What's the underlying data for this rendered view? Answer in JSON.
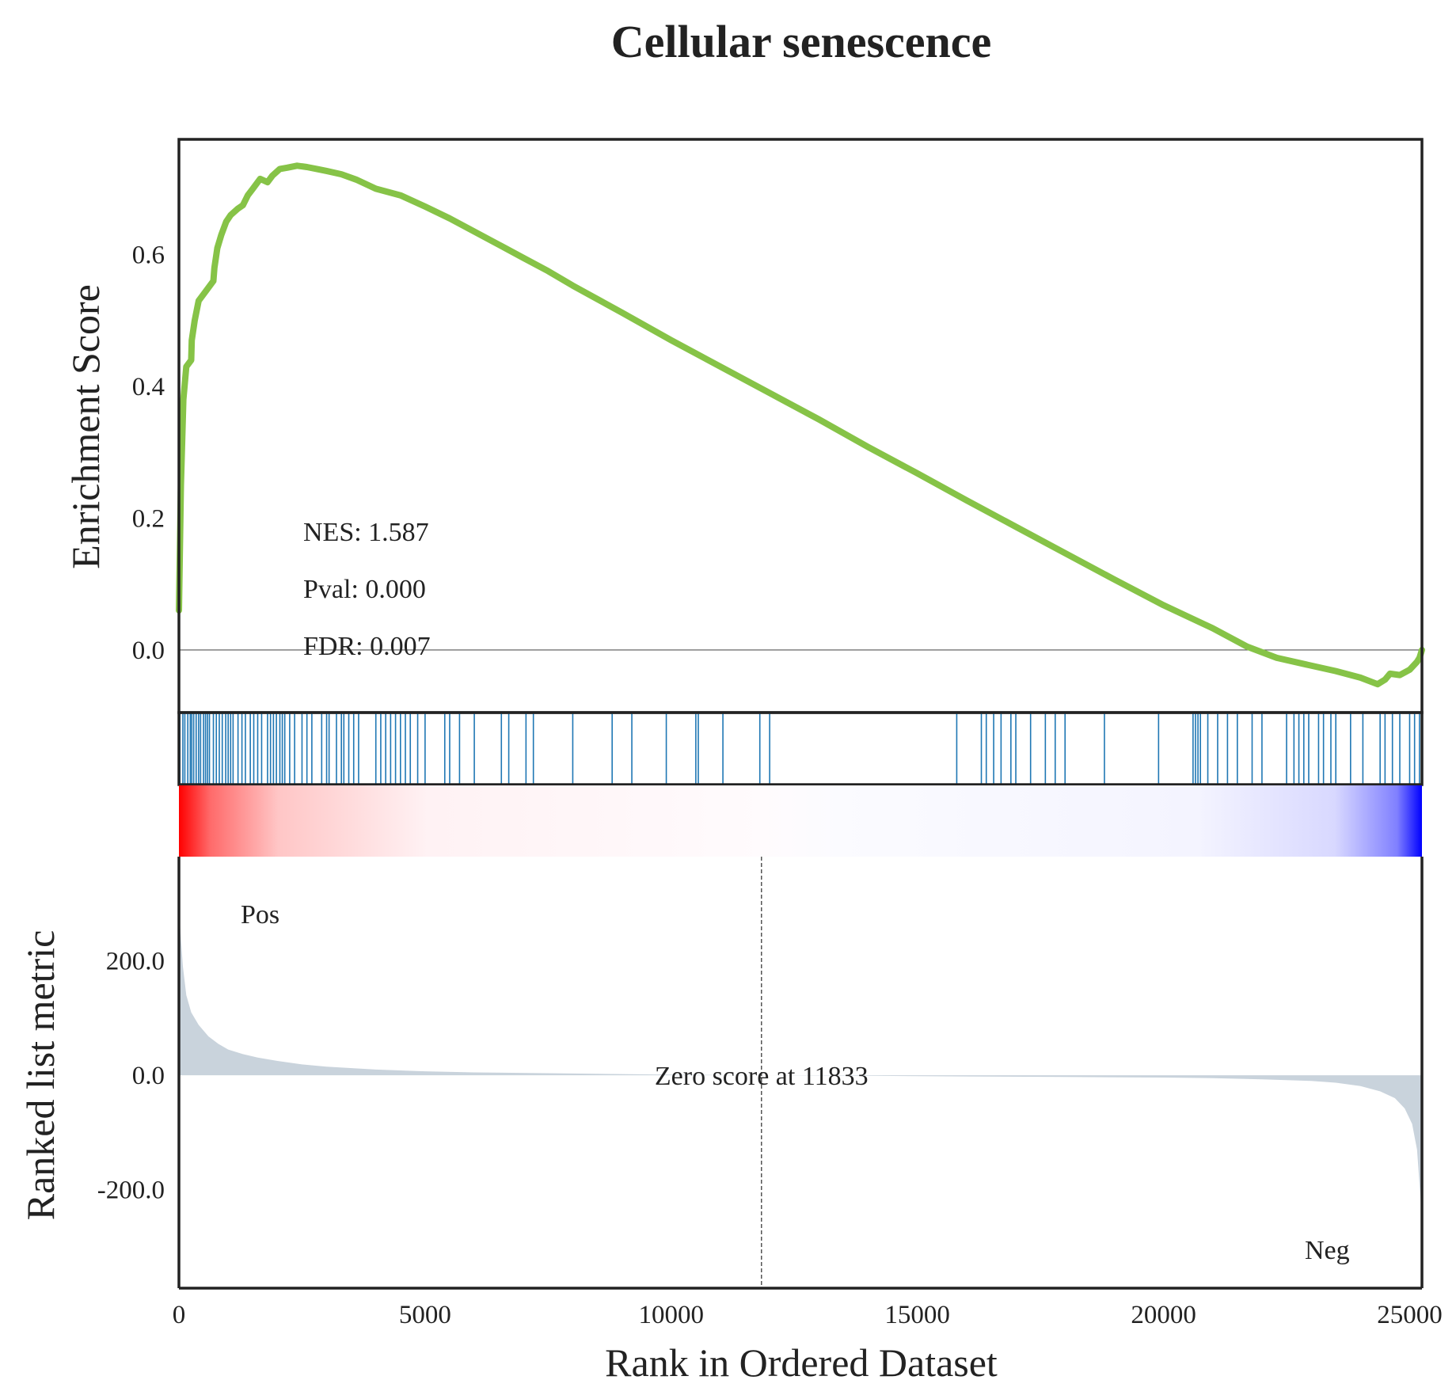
{
  "chart_data": {
    "type": "line",
    "title": "Cellular senescence",
    "xlabel": "Rank in Ordered Dataset",
    "x_range": [
      0,
      25250
    ],
    "x_ticks": [
      0,
      5000,
      10000,
      15000,
      20000,
      25000
    ],
    "x_tick_labels": [
      "0",
      "5000",
      "10000",
      "15000",
      "20000",
      "25000"
    ],
    "colors": {
      "es_line": "#86c347",
      "hits": "#1f77b4",
      "metric_fill": "#c9d3dc",
      "pos": "#ff0000",
      "neg": "#0000ff"
    },
    "enrichment": {
      "ylabel": "Enrichment Score",
      "ylim": [
        -0.095,
        0.775
      ],
      "y_ticks": [
        0.0,
        0.2,
        0.4,
        0.6
      ],
      "y_tick_labels": [
        "0.0",
        "0.2",
        "0.4",
        "0.6"
      ],
      "stats": {
        "nes": "NES: 1.587",
        "pval": "Pval: 0.000",
        "fdr": "FDR: 0.007"
      },
      "points": [
        [
          0,
          0.06
        ],
        [
          40,
          0.25
        ],
        [
          90,
          0.38
        ],
        [
          150,
          0.43
        ],
        [
          250,
          0.44
        ],
        [
          260,
          0.47
        ],
        [
          320,
          0.5
        ],
        [
          400,
          0.53
        ],
        [
          500,
          0.54
        ],
        [
          600,
          0.55
        ],
        [
          700,
          0.56
        ],
        [
          720,
          0.58
        ],
        [
          780,
          0.61
        ],
        [
          860,
          0.63
        ],
        [
          960,
          0.65
        ],
        [
          1050,
          0.66
        ],
        [
          1200,
          0.67
        ],
        [
          1300,
          0.675
        ],
        [
          1400,
          0.69
        ],
        [
          1500,
          0.7
        ],
        [
          1650,
          0.715
        ],
        [
          1800,
          0.71
        ],
        [
          1900,
          0.72
        ],
        [
          2050,
          0.73
        ],
        [
          2200,
          0.732
        ],
        [
          2400,
          0.735
        ],
        [
          2600,
          0.733
        ],
        [
          2800,
          0.73
        ],
        [
          3000,
          0.727
        ],
        [
          3300,
          0.722
        ],
        [
          3600,
          0.714
        ],
        [
          4000,
          0.7
        ],
        [
          4500,
          0.69
        ],
        [
          5000,
          0.673
        ],
        [
          5500,
          0.655
        ],
        [
          6000,
          0.635
        ],
        [
          6500,
          0.615
        ],
        [
          7000,
          0.595
        ],
        [
          7500,
          0.575
        ],
        [
          8000,
          0.553
        ],
        [
          9000,
          0.512
        ],
        [
          10000,
          0.47
        ],
        [
          11000,
          0.43
        ],
        [
          12000,
          0.39
        ],
        [
          13000,
          0.35
        ],
        [
          14000,
          0.308
        ],
        [
          15000,
          0.268
        ],
        [
          16000,
          0.227
        ],
        [
          17000,
          0.187
        ],
        [
          18000,
          0.147
        ],
        [
          19000,
          0.107
        ],
        [
          20000,
          0.068
        ],
        [
          21000,
          0.033
        ],
        [
          21700,
          0.005
        ],
        [
          22300,
          -0.012
        ],
        [
          22900,
          -0.022
        ],
        [
          23500,
          -0.032
        ],
        [
          24000,
          -0.042
        ],
        [
          24350,
          -0.052
        ],
        [
          24500,
          -0.045
        ],
        [
          24600,
          -0.036
        ],
        [
          24800,
          -0.038
        ],
        [
          25000,
          -0.03
        ],
        [
          25150,
          -0.018
        ],
        [
          25200,
          -0.012
        ],
        [
          25250,
          0.0
        ]
      ]
    },
    "hits": [
      20,
      80,
      120,
      180,
      230,
      260,
      300,
      350,
      400,
      440,
      500,
      540,
      580,
      620,
      700,
      760,
      820,
      880,
      950,
      1000,
      1050,
      1100,
      1200,
      1280,
      1350,
      1450,
      1520,
      1600,
      1680,
      1800,
      1860,
      1920,
      1980,
      2050,
      2100,
      2150,
      2250,
      2350,
      2500,
      2600,
      2700,
      2900,
      3000,
      3050,
      3200,
      3300,
      3350,
      3450,
      3550,
      3650,
      4000,
      4100,
      4200,
      4300,
      4400,
      4500,
      4600,
      4700,
      4850,
      5000,
      5400,
      5500,
      5700,
      6000,
      6550,
      6700,
      7050,
      7200,
      8000,
      8800,
      9200,
      9900,
      10500,
      10550,
      11050,
      11800,
      12000,
      15800,
      16300,
      16400,
      16550,
      16700,
      16900,
      17000,
      17300,
      17600,
      17800,
      18000,
      18800,
      19900,
      20600,
      20650,
      20700,
      20750,
      20900,
      21100,
      21300,
      21500,
      21800,
      22000,
      22500,
      22650,
      22750,
      22850,
      22950,
      23150,
      23250,
      23400,
      23500,
      23800,
      24050,
      24400,
      24500,
      24650,
      24800,
      25000,
      25100,
      25200
    ],
    "metric": {
      "ylabel": "Ranked list metric",
      "ylim": [
        -372,
        382
      ],
      "y_ticks": [
        -200.0,
        0.0,
        200.0
      ],
      "y_tick_labels": [
        "-200.0",
        "0.0",
        "200.0"
      ],
      "zero_score_rank": 11833,
      "zero_score_label": "Zero score at 11833",
      "pos_label": "Pos",
      "neg_label": "Neg",
      "points": [
        [
          0,
          300
        ],
        [
          30,
          250
        ],
        [
          80,
          190
        ],
        [
          150,
          140
        ],
        [
          250,
          110
        ],
        [
          400,
          88
        ],
        [
          600,
          68
        ],
        [
          800,
          55
        ],
        [
          1000,
          45
        ],
        [
          1300,
          37
        ],
        [
          1600,
          31
        ],
        [
          2000,
          25
        ],
        [
          2500,
          19
        ],
        [
          3000,
          15
        ],
        [
          4000,
          10
        ],
        [
          5000,
          7
        ],
        [
          6000,
          5
        ],
        [
          8000,
          3
        ],
        [
          10000,
          1
        ],
        [
          11833,
          0
        ],
        [
          14000,
          -1
        ],
        [
          16000,
          -2
        ],
        [
          18000,
          -3
        ],
        [
          20000,
          -4
        ],
        [
          21000,
          -5
        ],
        [
          22000,
          -7
        ],
        [
          23000,
          -10
        ],
        [
          23500,
          -13
        ],
        [
          24000,
          -19
        ],
        [
          24400,
          -28
        ],
        [
          24700,
          -40
        ],
        [
          24900,
          -58
        ],
        [
          25050,
          -85
        ],
        [
          25150,
          -130
        ],
        [
          25200,
          -190
        ],
        [
          25250,
          -250
        ]
      ]
    }
  }
}
